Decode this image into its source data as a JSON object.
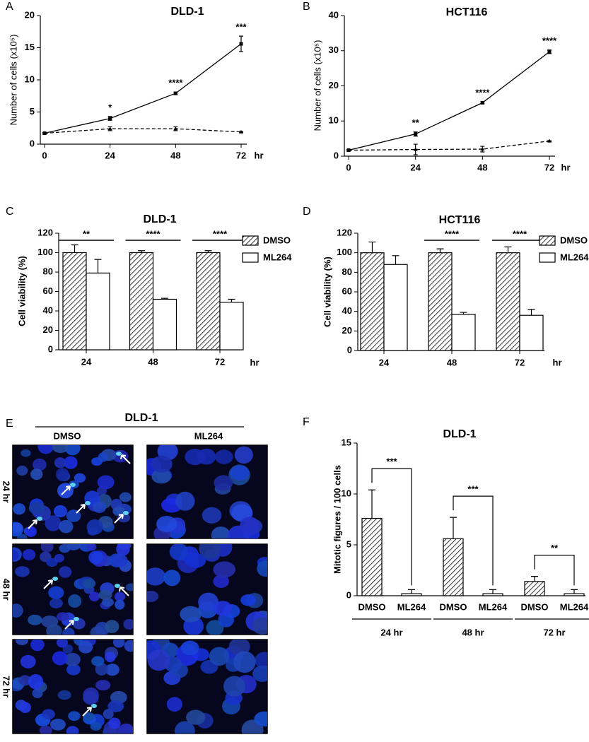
{
  "chart_data": [
    {
      "type": "line",
      "panel": "A",
      "title": "DLD-1",
      "ylabel": "Number of cells (x10⁵)",
      "xlabel": "hr",
      "x": [
        0,
        24,
        48,
        72
      ],
      "xlim": [
        0,
        72
      ],
      "xticks": [
        0,
        24,
        48,
        72
      ],
      "ylim": [
        0,
        20
      ],
      "yticks": [
        0,
        5,
        10,
        15,
        20
      ],
      "series": [
        {
          "color": "#000000",
          "line_style": "solid",
          "marker": "square",
          "values": [
            1.7,
            4.0,
            7.9,
            15.6
          ],
          "errors": [
            0.1,
            0.3,
            0.2,
            1.2
          ]
        },
        {
          "color": "#000000",
          "line_style": "dashed",
          "marker": "triangle",
          "values": [
            1.7,
            2.4,
            2.4,
            1.9
          ],
          "errors": [
            0.1,
            0.3,
            0.3,
            0.05
          ]
        }
      ],
      "annotations": [
        "*",
        "****",
        "***"
      ]
    },
    {
      "type": "line",
      "panel": "B",
      "title": "HCT116",
      "ylabel": "Number of cells (x10⁵)",
      "xlabel": "hr",
      "x": [
        0,
        24,
        48,
        72
      ],
      "xlim": [
        0,
        72
      ],
      "xticks": [
        0,
        24,
        48,
        72
      ],
      "ylim": [
        0,
        40
      ],
      "yticks": [
        0,
        10,
        20,
        30,
        40
      ],
      "series": [
        {
          "color": "#000000",
          "line_style": "solid",
          "marker": "square",
          "values": [
            1.7,
            6.3,
            15.2,
            29.7
          ],
          "errors": [
            0.2,
            0.6,
            0.3,
            0.5
          ]
        },
        {
          "color": "#000000",
          "line_style": "dashed",
          "marker": "triangle",
          "values": [
            1.7,
            1.9,
            2.0,
            4.3
          ],
          "errors": [
            0.2,
            1.5,
            0.8,
            0.1
          ]
        }
      ],
      "annotations": [
        "**",
        "****",
        "****"
      ]
    },
    {
      "type": "bar",
      "panel": "C",
      "title": "DLD-1",
      "ylabel": "Cell viability (%)",
      "xlabel": "hr",
      "categories": [
        "24",
        "48",
        "72"
      ],
      "ylim": [
        0,
        120
      ],
      "yticks": [
        0,
        20,
        40,
        60,
        80,
        100,
        120
      ],
      "legend": true,
      "series": [
        {
          "name": "DMSO",
          "color": "#333333",
          "fill": "hatch",
          "values": [
            100,
            100,
            100
          ],
          "errors": [
            8,
            2,
            2
          ]
        },
        {
          "name": "ML264",
          "color": "#ffffff",
          "fill": "solid",
          "values": [
            79,
            52,
            49
          ],
          "errors": [
            14,
            1,
            3
          ]
        }
      ],
      "significance": [
        "**",
        "****",
        "****"
      ]
    },
    {
      "type": "bar",
      "panel": "D",
      "title": "HCT116",
      "ylabel": "Cell viability (%)",
      "xlabel": "hr",
      "categories": [
        "24",
        "48",
        "72"
      ],
      "ylim": [
        0,
        120
      ],
      "yticks": [
        0,
        20,
        40,
        60,
        80,
        100,
        120
      ],
      "legend": true,
      "series": [
        {
          "name": "DMSO",
          "color": "#333333",
          "fill": "hatch",
          "values": [
            100,
            100,
            100
          ],
          "errors": [
            11,
            4,
            6
          ]
        },
        {
          "name": "ML264",
          "color": "#ffffff",
          "fill": "solid",
          "values": [
            88,
            37,
            36
          ],
          "errors": [
            9,
            2,
            6
          ]
        }
      ],
      "significance": [
        null,
        "****",
        "****"
      ]
    },
    {
      "type": "bar",
      "panel": "F",
      "title": "DLD-1",
      "ylabel": "Mitotic figures / 100 cells",
      "categories": [
        "24 hr",
        "48 hr",
        "72 hr"
      ],
      "ylim": [
        0,
        15
      ],
      "yticks": [
        0,
        5,
        10,
        15
      ],
      "legend": false,
      "series": [
        {
          "name": "DMSO",
          "color": "#333333",
          "fill": "hatch",
          "values": [
            7.6,
            5.6,
            1.4
          ],
          "errors": [
            2.8,
            2.1,
            0.5
          ]
        },
        {
          "name": "ML264",
          "color": "#ffffff",
          "fill": "solid",
          "values": [
            0.2,
            0.2,
            0.2
          ],
          "errors": [
            0.4,
            0.4,
            0.4
          ]
        }
      ],
      "significance": [
        "***",
        "***",
        "**"
      ]
    }
  ],
  "panel_e": {
    "panel": "E",
    "title": "DLD-1",
    "columns": [
      "DMSO",
      "ML264"
    ],
    "rows": [
      "24 hr",
      "48 hr",
      "72 hr"
    ]
  }
}
